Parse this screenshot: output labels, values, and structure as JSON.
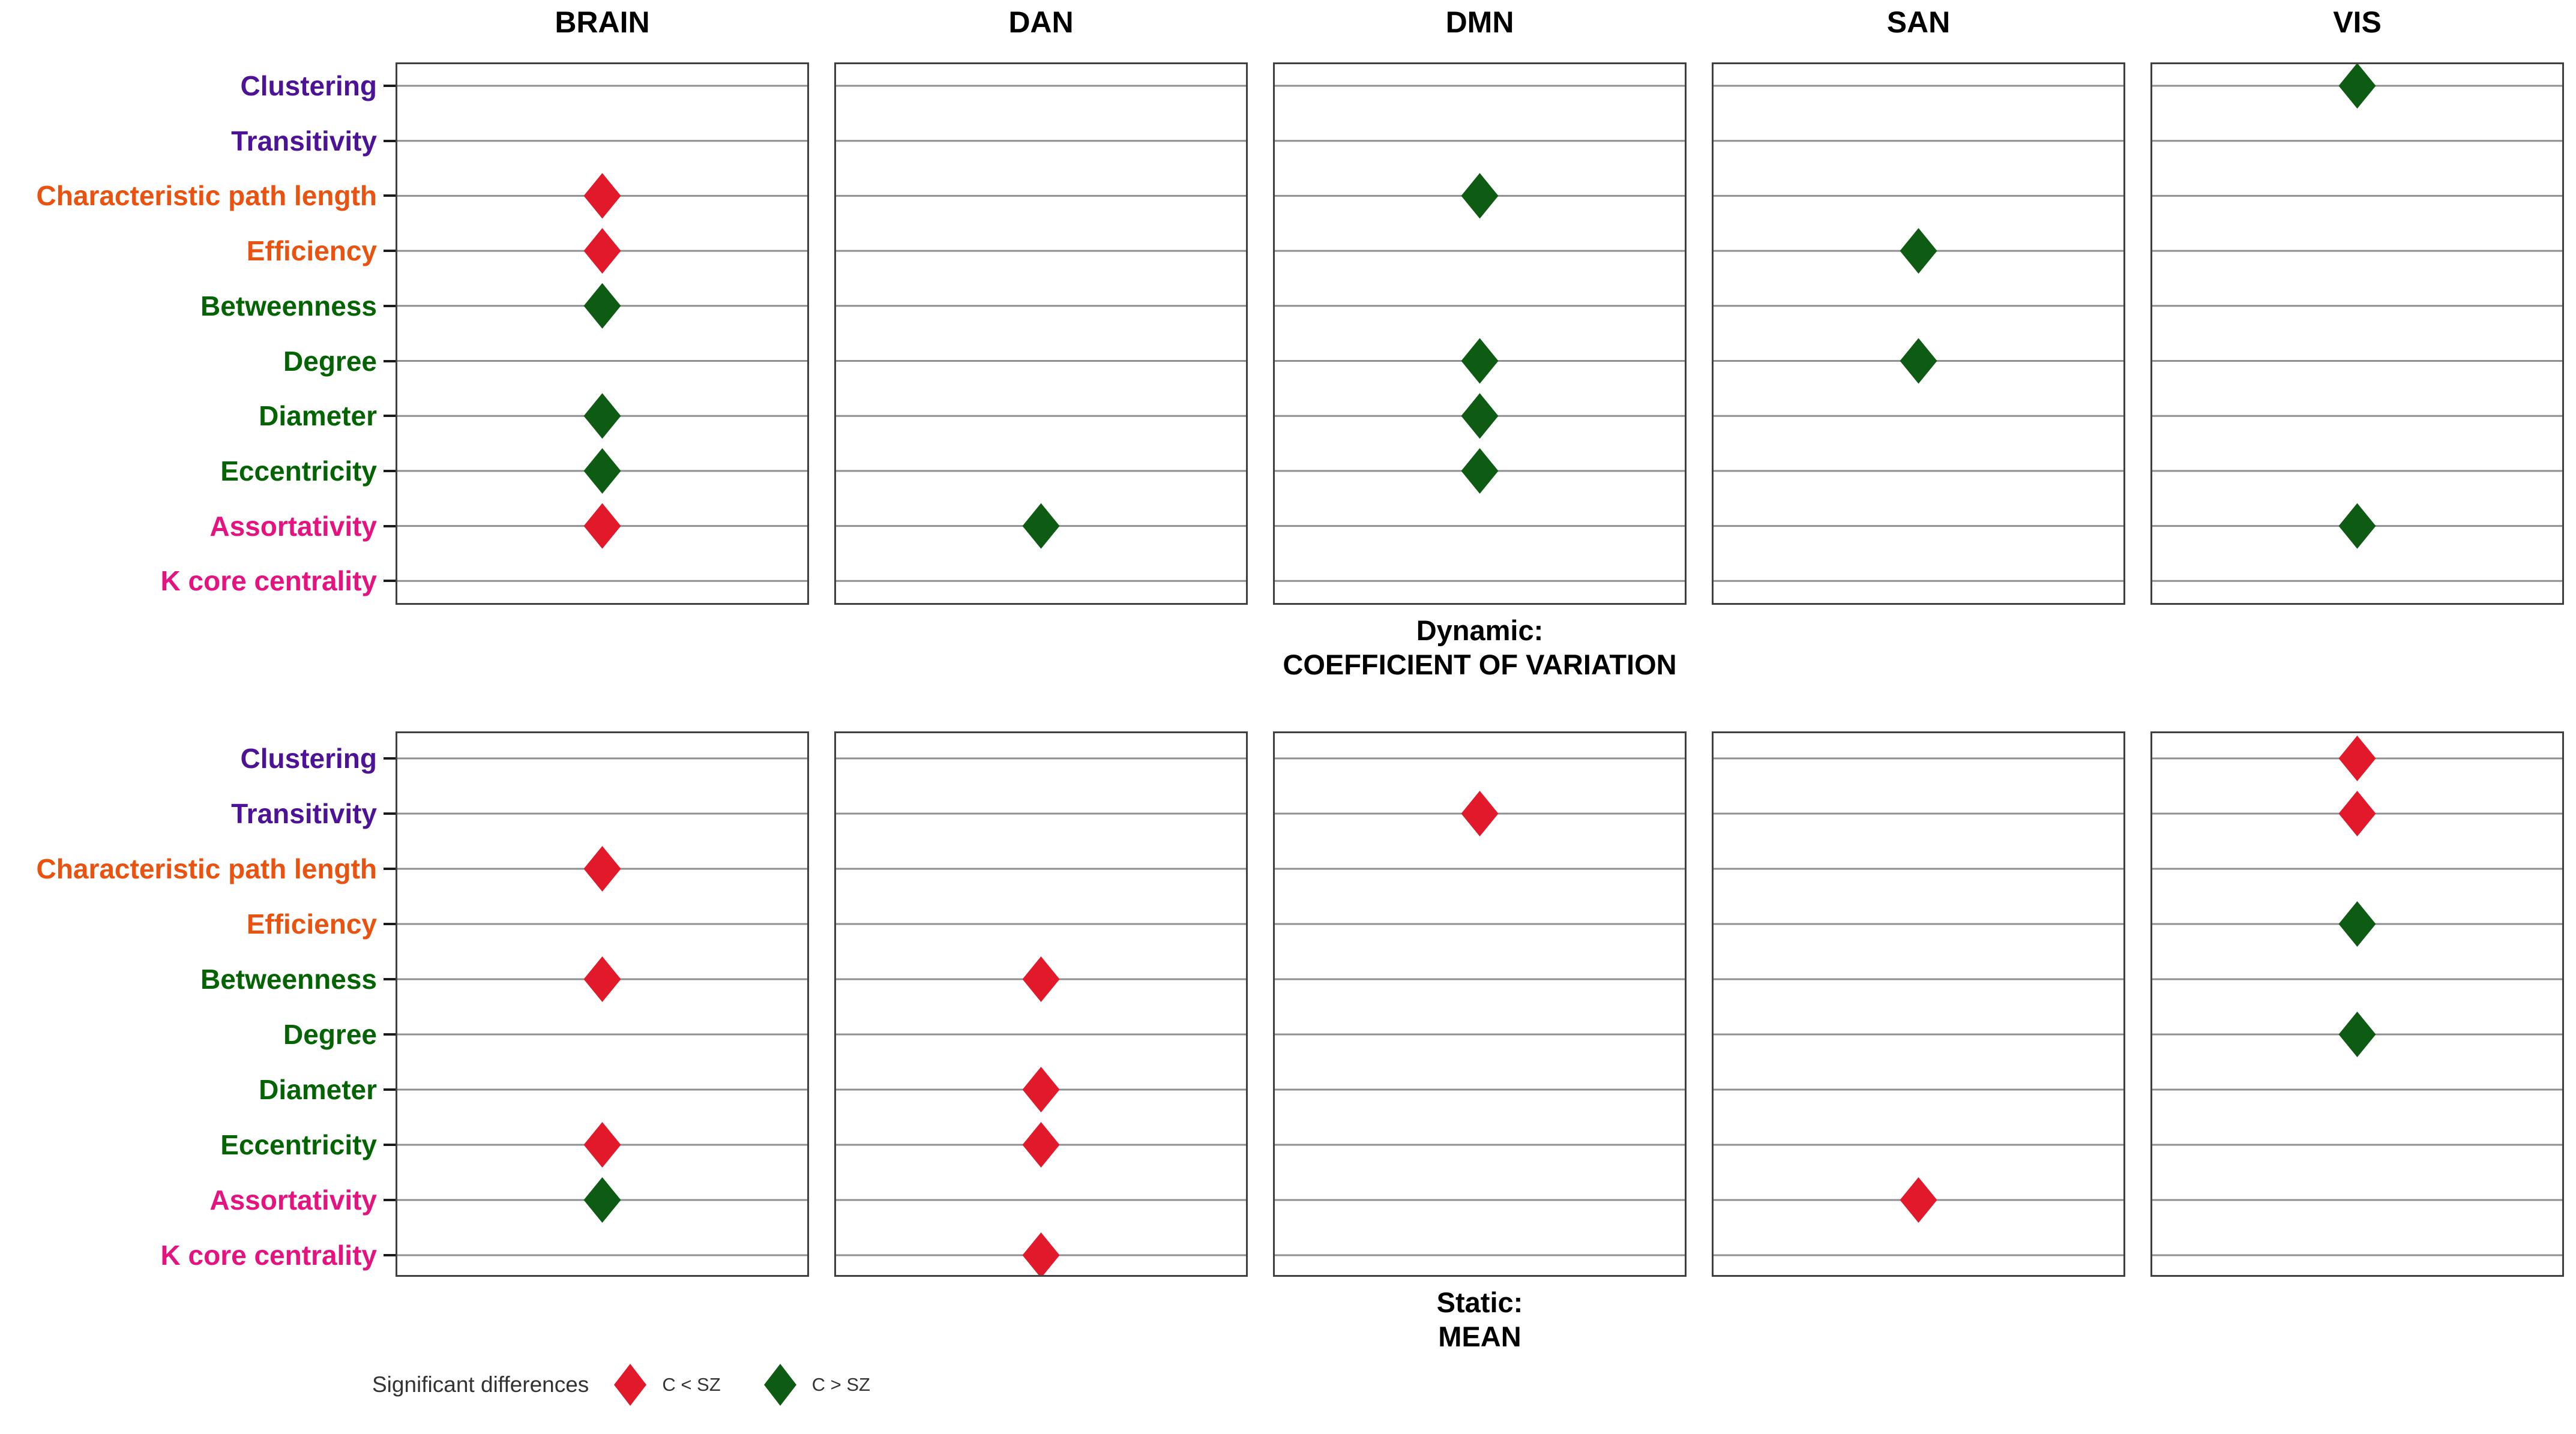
{
  "chart_data": {
    "type": "scatter",
    "title": "",
    "layout_hint": "2 facet rows x 5 facet columns; diamond markers placed on horizontal category gridlines at panel center; grid on; legend bottom-left",
    "columns": [
      "BRAIN",
      "DAN",
      "DMN",
      "SAN",
      "VIS"
    ],
    "rows": [
      {
        "label": "Clustering",
        "color": "#4c1396"
      },
      {
        "label": "Transitivity",
        "color": "#4c1396"
      },
      {
        "label": "Characteristic path length",
        "color": "#ea520f"
      },
      {
        "label": "Efficiency",
        "color": "#ea520f"
      },
      {
        "label": "Betweenness",
        "color": "#046404"
      },
      {
        "label": "Degree",
        "color": "#046404"
      },
      {
        "label": "Diameter",
        "color": "#046404"
      },
      {
        "label": "Eccentricity",
        "color": "#046404"
      },
      {
        "label": "Assortativity",
        "color": "#e5137f"
      },
      {
        "label": "K core centrality",
        "color": "#e5137f"
      }
    ],
    "facets": [
      {
        "id": "dynamic",
        "caption": [
          "Dynamic:",
          "COEFFICIENT OF VARIATION"
        ],
        "markers": [
          {
            "column": "BRAIN",
            "row": "Characteristic path length",
            "significance": "C < SZ"
          },
          {
            "column": "BRAIN",
            "row": "Efficiency",
            "significance": "C < SZ"
          },
          {
            "column": "BRAIN",
            "row": "Betweenness",
            "significance": "C > SZ"
          },
          {
            "column": "BRAIN",
            "row": "Diameter",
            "significance": "C > SZ"
          },
          {
            "column": "BRAIN",
            "row": "Eccentricity",
            "significance": "C > SZ"
          },
          {
            "column": "BRAIN",
            "row": "Assortativity",
            "significance": "C < SZ"
          },
          {
            "column": "DAN",
            "row": "Assortativity",
            "significance": "C > SZ"
          },
          {
            "column": "DMN",
            "row": "Characteristic path length",
            "significance": "C > SZ"
          },
          {
            "column": "DMN",
            "row": "Degree",
            "significance": "C > SZ"
          },
          {
            "column": "DMN",
            "row": "Diameter",
            "significance": "C > SZ"
          },
          {
            "column": "DMN",
            "row": "Eccentricity",
            "significance": "C > SZ"
          },
          {
            "column": "SAN",
            "row": "Efficiency",
            "significance": "C > SZ"
          },
          {
            "column": "SAN",
            "row": "Degree",
            "significance": "C > SZ"
          },
          {
            "column": "VIS",
            "row": "Clustering",
            "significance": "C > SZ"
          },
          {
            "column": "VIS",
            "row": "Assortativity",
            "significance": "C > SZ"
          }
        ]
      },
      {
        "id": "static",
        "caption": [
          "Static:",
          "MEAN"
        ],
        "markers": [
          {
            "column": "BRAIN",
            "row": "Characteristic path length",
            "significance": "C < SZ"
          },
          {
            "column": "BRAIN",
            "row": "Betweenness",
            "significance": "C < SZ"
          },
          {
            "column": "BRAIN",
            "row": "Eccentricity",
            "significance": "C < SZ"
          },
          {
            "column": "BRAIN",
            "row": "Assortativity",
            "significance": "C > SZ"
          },
          {
            "column": "DAN",
            "row": "Betweenness",
            "significance": "C < SZ"
          },
          {
            "column": "DAN",
            "row": "Diameter",
            "significance": "C < SZ"
          },
          {
            "column": "DAN",
            "row": "Eccentricity",
            "significance": "C < SZ"
          },
          {
            "column": "DAN",
            "row": "K core centrality",
            "significance": "C < SZ"
          },
          {
            "column": "DMN",
            "row": "Transitivity",
            "significance": "C < SZ"
          },
          {
            "column": "SAN",
            "row": "Assortativity",
            "significance": "C < SZ"
          },
          {
            "column": "VIS",
            "row": "Clustering",
            "significance": "C < SZ"
          },
          {
            "column": "VIS",
            "row": "Transitivity",
            "significance": "C < SZ"
          },
          {
            "column": "VIS",
            "row": "Efficiency",
            "significance": "C > SZ"
          },
          {
            "column": "VIS",
            "row": "Degree",
            "significance": "C > SZ"
          }
        ]
      }
    ],
    "marker_shape": "diamond",
    "significance_colors": {
      "C < SZ": "#e2192b",
      "C > SZ": "#0e5c14"
    },
    "legend": {
      "title": "Significant differences",
      "items": [
        {
          "label": "C < SZ",
          "color": "#e2192b"
        },
        {
          "label": "C > SZ",
          "color": "#0e5c14"
        }
      ]
    },
    "styles": {
      "gridline_color": "#8f8f8f",
      "panel_border_color": "#404040",
      "tick_color": "#1a1a1a",
      "caption_color": "#000000",
      "legend_text_color": "#333333",
      "background": "#ffffff"
    }
  }
}
